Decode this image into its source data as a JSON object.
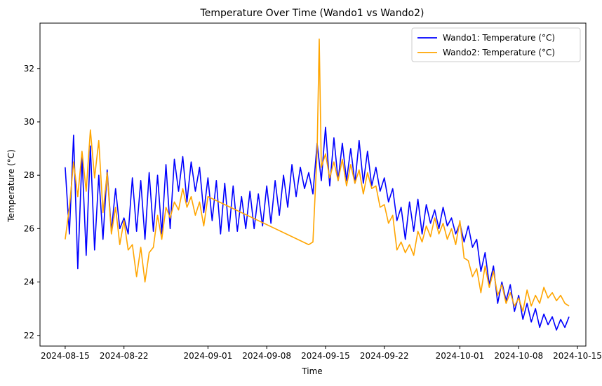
{
  "chart_data": {
    "type": "line",
    "title": "Temperature Over Time (Wando1 vs Wando2)",
    "xlabel": "Time",
    "ylabel": "Temperature (°C)",
    "x_tick_labels": [
      "2024-08-15",
      "2024-08-22",
      "2024-09-01",
      "2024-09-08",
      "2024-09-15",
      "2024-09-22",
      "2024-10-01",
      "2024-10-08",
      "2024-10-15"
    ],
    "x_tick_dates": [
      "2024-08-15",
      "2024-08-22",
      "2024-09-01",
      "2024-09-08",
      "2024-09-15",
      "2024-09-22",
      "2024-10-01",
      "2024-10-08",
      "2024-10-15"
    ],
    "xlim": [
      "2024-08-12",
      "2024-10-16"
    ],
    "y_ticks": [
      22,
      24,
      26,
      28,
      30,
      32
    ],
    "ylim": [
      21.6,
      33.7
    ],
    "grid": false,
    "legend_position": "upper right",
    "series": [
      {
        "name": "Wando1: Temperature (°C)",
        "color": "#0000ff",
        "x": [
          "2024-08-15T00",
          "2024-08-15T12",
          "2024-08-16",
          "2024-08-16T12",
          "2024-08-17",
          "2024-08-17T12",
          "2024-08-18",
          "2024-08-18T12",
          "2024-08-19",
          "2024-08-19T12",
          "2024-08-20",
          "2024-08-20T12",
          "2024-08-21",
          "2024-08-21T12",
          "2024-08-22",
          "2024-08-22T12",
          "2024-08-23",
          "2024-08-23T12",
          "2024-08-24",
          "2024-08-24T12",
          "2024-08-25",
          "2024-08-25T12",
          "2024-08-26",
          "2024-08-26T12",
          "2024-08-27",
          "2024-08-27T12",
          "2024-08-28",
          "2024-08-28T12",
          "2024-08-29",
          "2024-08-29T12",
          "2024-08-30",
          "2024-08-30T12",
          "2024-08-31",
          "2024-08-31T12",
          "2024-09-01",
          "2024-09-01T12",
          "2024-09-02",
          "2024-09-02T12",
          "2024-09-03",
          "2024-09-03T12",
          "2024-09-04",
          "2024-09-04T12",
          "2024-09-05",
          "2024-09-05T12",
          "2024-09-06",
          "2024-09-06T12",
          "2024-09-07",
          "2024-09-07T12",
          "2024-09-08",
          "2024-09-08T12",
          "2024-09-09",
          "2024-09-09T12",
          "2024-09-10",
          "2024-09-10T12",
          "2024-09-11",
          "2024-09-11T12",
          "2024-09-12",
          "2024-09-12T12",
          "2024-09-13",
          "2024-09-13T12",
          "2024-09-14",
          "2024-09-14T12",
          "2024-09-15",
          "2024-09-15T12",
          "2024-09-16",
          "2024-09-16T12",
          "2024-09-17",
          "2024-09-17T12",
          "2024-09-18",
          "2024-09-18T12",
          "2024-09-19",
          "2024-09-19T12",
          "2024-09-20",
          "2024-09-20T12",
          "2024-09-21",
          "2024-09-21T12",
          "2024-09-22",
          "2024-09-22T12",
          "2024-09-23",
          "2024-09-23T12",
          "2024-09-24",
          "2024-09-24T12",
          "2024-09-25",
          "2024-09-25T12",
          "2024-09-26",
          "2024-09-26T12",
          "2024-09-27",
          "2024-09-27T12",
          "2024-09-28",
          "2024-09-28T12",
          "2024-09-29",
          "2024-09-29T12",
          "2024-09-30",
          "2024-09-30T12",
          "2024-10-01",
          "2024-10-01T12",
          "2024-10-02",
          "2024-10-02T12",
          "2024-10-03",
          "2024-10-03T12",
          "2024-10-04",
          "2024-10-04T12",
          "2024-10-05",
          "2024-10-05T12",
          "2024-10-06",
          "2024-10-06T12",
          "2024-10-07",
          "2024-10-07T12",
          "2024-10-08",
          "2024-10-08T12",
          "2024-10-09",
          "2024-10-09T12",
          "2024-10-10",
          "2024-10-10T12",
          "2024-10-11",
          "2024-10-11T12",
          "2024-10-12",
          "2024-10-12T12",
          "2024-10-13",
          "2024-10-13T12",
          "2024-10-14"
        ],
        "y": [
          28.3,
          25.8,
          29.5,
          24.5,
          28.7,
          25.0,
          29.1,
          25.2,
          28.0,
          25.6,
          28.2,
          25.9,
          27.5,
          26.0,
          26.4,
          25.8,
          27.9,
          25.9,
          27.8,
          25.6,
          28.1,
          25.9,
          28.0,
          25.8,
          28.4,
          26.0,
          28.6,
          27.4,
          28.7,
          27.0,
          28.5,
          27.4,
          28.3,
          26.6,
          27.9,
          26.3,
          27.8,
          25.8,
          27.7,
          25.9,
          27.6,
          25.9,
          27.2,
          26.0,
          27.4,
          26.0,
          27.3,
          26.1,
          27.6,
          26.2,
          27.8,
          26.5,
          28.0,
          26.8,
          28.4,
          27.2,
          28.3,
          27.5,
          28.1,
          27.3,
          29.2,
          27.8,
          29.8,
          27.6,
          29.4,
          27.8,
          29.2,
          27.8,
          29.0,
          27.7,
          29.3,
          27.7,
          28.9,
          27.6,
          28.3,
          27.4,
          27.9,
          27.0,
          27.5,
          26.3,
          26.8,
          25.6,
          27.0,
          25.9,
          27.1,
          25.8,
          26.9,
          26.2,
          26.7,
          26.0,
          26.8,
          26.1,
          26.4,
          25.8,
          26.2,
          25.5,
          26.1,
          25.3,
          25.6,
          24.4,
          25.1,
          23.9,
          24.6,
          23.2,
          24.0,
          23.3,
          23.9,
          22.9,
          23.5,
          22.6,
          23.2,
          22.5,
          23.0,
          22.3,
          22.8,
          22.4,
          22.7,
          22.2,
          22.6,
          22.3,
          22.7
        ]
      },
      {
        "name": "Wando2: Temperature (°C)",
        "color": "#ffa500",
        "x": [
          "2024-08-15T00",
          "2024-08-15T12",
          "2024-08-16",
          "2024-08-16T12",
          "2024-08-17",
          "2024-08-17T12",
          "2024-08-18",
          "2024-08-18T12",
          "2024-08-19",
          "2024-08-19T12",
          "2024-08-20",
          "2024-08-20T12",
          "2024-08-21",
          "2024-08-21T12",
          "2024-08-22",
          "2024-08-22T12",
          "2024-08-23",
          "2024-08-23T12",
          "2024-08-24",
          "2024-08-24T12",
          "2024-08-25",
          "2024-08-25T12",
          "2024-08-26",
          "2024-08-26T12",
          "2024-08-27",
          "2024-08-27T12",
          "2024-08-28",
          "2024-08-28T12",
          "2024-08-29",
          "2024-08-29T12",
          "2024-08-30",
          "2024-08-30T12",
          "2024-08-31",
          "2024-08-31T12",
          "2024-09-01",
          "2024-09-13",
          "2024-09-13T12",
          "2024-09-14",
          "2024-09-14T06",
          "2024-09-14T12",
          "2024-09-15",
          "2024-09-15T12",
          "2024-09-16",
          "2024-09-16T12",
          "2024-09-17",
          "2024-09-17T12",
          "2024-09-18",
          "2024-09-18T12",
          "2024-09-19",
          "2024-09-19T12",
          "2024-09-20",
          "2024-09-20T12",
          "2024-09-21",
          "2024-09-21T12",
          "2024-09-22",
          "2024-09-22T12",
          "2024-09-23",
          "2024-09-23T12",
          "2024-09-24",
          "2024-09-24T12",
          "2024-09-25",
          "2024-09-25T12",
          "2024-09-26",
          "2024-09-26T12",
          "2024-09-27",
          "2024-09-27T12",
          "2024-09-28",
          "2024-09-28T12",
          "2024-09-29",
          "2024-09-29T12",
          "2024-09-30",
          "2024-09-30T12",
          "2024-10-01",
          "2024-10-01T12",
          "2024-10-02",
          "2024-10-02T12",
          "2024-10-03",
          "2024-10-03T12",
          "2024-10-04",
          "2024-10-04T12",
          "2024-10-05",
          "2024-10-05T12",
          "2024-10-06",
          "2024-10-06T12",
          "2024-10-07",
          "2024-10-07T12",
          "2024-10-08",
          "2024-10-08T12",
          "2024-10-09",
          "2024-10-09T12",
          "2024-10-10",
          "2024-10-10T12",
          "2024-10-11",
          "2024-10-11T12",
          "2024-10-12",
          "2024-10-12T12",
          "2024-10-13",
          "2024-10-13T12",
          "2024-10-14"
        ],
        "y": [
          25.6,
          26.8,
          28.5,
          27.2,
          28.9,
          27.4,
          29.7,
          27.9,
          29.3,
          26.6,
          28.1,
          25.8,
          26.8,
          25.4,
          26.3,
          25.2,
          25.4,
          24.2,
          25.3,
          24.0,
          25.1,
          25.3,
          26.5,
          25.6,
          26.8,
          26.4,
          27.0,
          26.7,
          27.5,
          26.8,
          27.2,
          26.5,
          27.0,
          26.1,
          27.2,
          25.4,
          25.5,
          28.9,
          33.1,
          28.3,
          28.8,
          27.9,
          28.5,
          27.8,
          28.6,
          27.6,
          28.4,
          27.7,
          28.2,
          27.3,
          28.1,
          27.5,
          27.6,
          26.8,
          26.9,
          26.2,
          26.5,
          25.2,
          25.5,
          25.1,
          25.4,
          25.0,
          25.9,
          25.5,
          26.1,
          25.7,
          26.4,
          25.8,
          26.2,
          25.6,
          26.0,
          25.4,
          26.3,
          24.9,
          24.8,
          24.2,
          24.5,
          23.6,
          24.6,
          23.8,
          24.4,
          23.5,
          23.9,
          23.2,
          23.6,
          23.1,
          23.4,
          22.9,
          23.7,
          23.1,
          23.5,
          23.2,
          23.8,
          23.4,
          23.6,
          23.3,
          23.5,
          23.2,
          23.1
        ]
      }
    ]
  }
}
